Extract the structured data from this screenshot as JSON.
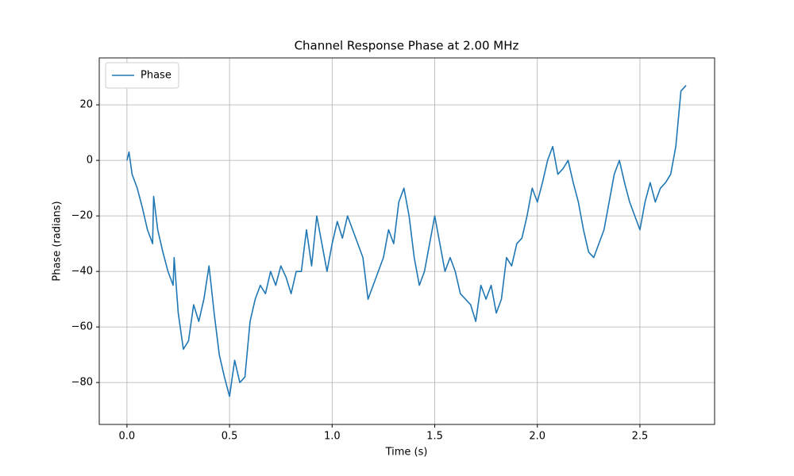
{
  "chart_data": {
    "type": "line",
    "title": "Channel Response Phase at 2.00 MHz",
    "x_label": "Time (s)",
    "y_label": "Phase (radians)",
    "x": [
      0,
      0.01,
      0.025,
      0.05,
      0.075,
      0.1,
      0.125,
      0.13,
      0.15,
      0.175,
      0.2,
      0.225,
      0.23,
      0.25,
      0.275,
      0.3,
      0.325,
      0.35,
      0.375,
      0.4,
      0.425,
      0.45,
      0.475,
      0.5,
      0.525,
      0.55,
      0.575,
      0.6,
      0.625,
      0.65,
      0.675,
      0.7,
      0.725,
      0.75,
      0.775,
      0.8,
      0.825,
      0.85,
      0.875,
      0.9,
      0.925,
      0.95,
      0.975,
      1.0,
      1.025,
      1.05,
      1.075,
      1.1,
      1.125,
      1.15,
      1.175,
      1.2,
      1.225,
      1.25,
      1.275,
      1.3,
      1.325,
      1.35,
      1.375,
      1.4,
      1.425,
      1.45,
      1.475,
      1.5,
      1.525,
      1.55,
      1.575,
      1.6,
      1.625,
      1.65,
      1.675,
      1.7,
      1.725,
      1.75,
      1.775,
      1.8,
      1.825,
      1.85,
      1.875,
      1.9,
      1.925,
      1.95,
      1.975,
      2.0,
      2.025,
      2.05,
      2.075,
      2.1,
      2.125,
      2.15,
      2.175,
      2.2,
      2.225,
      2.25,
      2.275,
      2.3,
      2.325,
      2.35,
      2.375,
      2.4,
      2.425,
      2.45,
      2.475,
      2.5,
      2.525,
      2.55,
      2.575,
      2.6,
      2.625,
      2.65,
      2.675,
      2.7,
      2.725
    ],
    "series": [
      {
        "name": "Phase",
        "color": "#1f77b4",
        "values": [
          0,
          3,
          -5,
          -10,
          -17,
          -25,
          -30,
          -13,
          -25,
          -33,
          -40,
          -45,
          -35,
          -55,
          -68,
          -65,
          -52,
          -58,
          -50,
          -38,
          -55,
          -70,
          -78,
          -85,
          -72,
          -80,
          -78,
          -58,
          -50,
          -45,
          -48,
          -40,
          -45,
          -38,
          -42,
          -48,
          -40,
          -40,
          -25,
          -38,
          -20,
          -30,
          -40,
          -30,
          -22,
          -28,
          -20,
          -25,
          -30,
          -35,
          -50,
          -45,
          -40,
          -35,
          -25,
          -30,
          -15,
          -10,
          -20,
          -35,
          -45,
          -40,
          -30,
          -20,
          -30,
          -40,
          -35,
          -40,
          -48,
          -50,
          -52,
          -58,
          -45,
          -50,
          -45,
          -55,
          -50,
          -35,
          -38,
          -30,
          -28,
          -20,
          -10,
          -15,
          -8,
          0,
          5,
          -5,
          -3,
          0,
          -8,
          -15,
          -25,
          -33,
          -35,
          -30,
          -25,
          -15,
          -5,
          0,
          -8,
          -15,
          -20,
          -25,
          -15,
          -8,
          -15,
          -10,
          -8,
          -5,
          5,
          25,
          27
        ]
      }
    ],
    "xlim": [
      -0.135,
      2.864
    ],
    "ylim": [
      -95.1,
      36.9
    ],
    "xticks": [
      {
        "value": 0,
        "label": "0.0"
      },
      0.5,
      {
        "value": 1,
        "label": "1.0"
      },
      1.5,
      {
        "value": 2,
        "label": "2.0"
      },
      2.5
    ],
    "yticks": [
      {
        "value": -80,
        "label": "−80"
      },
      {
        "value": -60,
        "label": "−60"
      },
      {
        "value": -40,
        "label": "−40"
      },
      {
        "value": -20,
        "label": "−20"
      },
      0,
      20
    ],
    "grid": true,
    "legend": "upper-left"
  }
}
